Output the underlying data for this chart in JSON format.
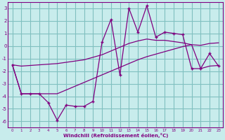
{
  "xlabel": "Windchill (Refroidissement éolien,°C)",
  "bg_color": "#c8ecec",
  "line_color": "#800080",
  "grid_color": "#80c0c0",
  "x_values": [
    0,
    1,
    2,
    3,
    4,
    5,
    6,
    7,
    8,
    9,
    10,
    11,
    12,
    13,
    14,
    15,
    16,
    17,
    18,
    19,
    20,
    21,
    22,
    23
  ],
  "y_main": [
    -1.5,
    -3.8,
    -3.8,
    -3.8,
    -4.5,
    -5.9,
    -4.7,
    -4.8,
    -4.8,
    -4.4,
    0.3,
    2.1,
    -2.3,
    3.0,
    1.1,
    3.2,
    0.7,
    1.1,
    1.0,
    0.9,
    -1.8,
    -1.8,
    -0.6,
    -1.6
  ],
  "y_upper": [
    -1.5,
    -1.6,
    -1.55,
    -1.5,
    -1.45,
    -1.4,
    -1.3,
    -1.2,
    -1.1,
    -0.9,
    -0.7,
    -0.4,
    -0.1,
    0.2,
    0.4,
    0.55,
    0.45,
    0.45,
    0.35,
    0.25,
    0.1,
    0.05,
    0.2,
    0.25
  ],
  "y_lower": [
    -1.5,
    -3.8,
    -3.8,
    -3.8,
    -3.8,
    -3.8,
    -3.5,
    -3.2,
    -2.9,
    -2.6,
    -2.3,
    -2.0,
    -1.7,
    -1.4,
    -1.1,
    -0.85,
    -0.65,
    -0.45,
    -0.25,
    -0.05,
    0.1,
    -1.8,
    -1.6,
    -1.55
  ],
  "ylim": [
    -6.5,
    3.5
  ],
  "yticks": [
    3,
    2,
    1,
    0,
    -1,
    -2,
    -3,
    -4,
    -5,
    -6
  ],
  "xlim": [
    -0.5,
    23.5
  ]
}
